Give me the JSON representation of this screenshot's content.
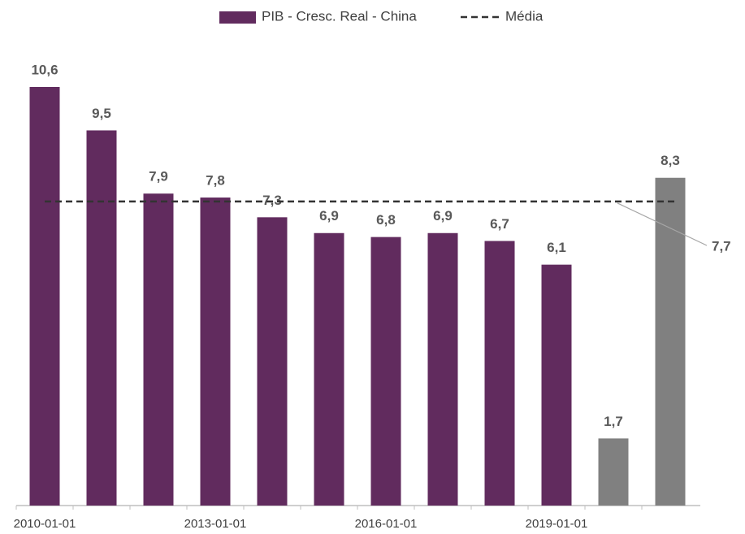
{
  "chart_data": {
    "type": "bar",
    "categories": [
      "2010-01-01",
      null,
      null,
      "2013-01-01",
      null,
      null,
      "2016-01-01",
      null,
      null,
      "2019-01-01",
      null,
      null
    ],
    "series": [
      {
        "name": "PIB - Cresc. Real - China",
        "color": "#612b5e",
        "colors": [
          "#612b5e",
          "#612b5e",
          "#612b5e",
          "#612b5e",
          "#612b5e",
          "#612b5e",
          "#612b5e",
          "#612b5e",
          "#612b5e",
          "#612b5e",
          "#808080",
          "#808080"
        ],
        "values": [
          10.6,
          9.5,
          7.9,
          7.8,
          7.3,
          6.9,
          6.8,
          6.9,
          6.7,
          6.1,
          1.7,
          8.3
        ],
        "value_labels": [
          "10,6",
          "9,5",
          "7,9",
          "7,8",
          "7,3",
          "6,9",
          "6,8",
          "6,9",
          "6,7",
          "6,1",
          "1,7",
          "8,3"
        ]
      }
    ],
    "mean": {
      "name": "Média",
      "value": 7.7,
      "label": "7,7",
      "color": "#333333"
    },
    "ylim": [
      0,
      10.6
    ]
  }
}
